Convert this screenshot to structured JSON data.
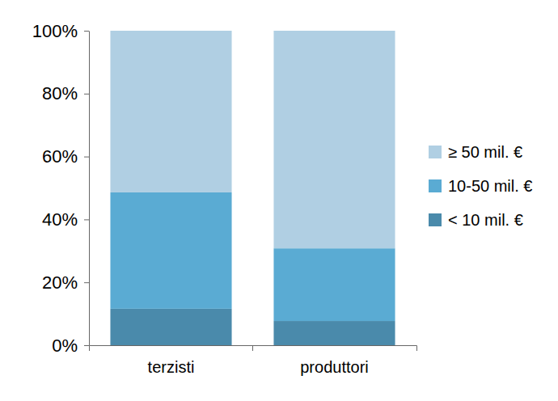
{
  "chart_data": {
    "type": "bar",
    "stacked": true,
    "legend": "right",
    "categories": [
      "terzisti",
      "produttori"
    ],
    "series": [
      {
        "name": "< 10 mil. €",
        "color": "#4a8aab",
        "values": [
          11.6,
          7.7
        ]
      },
      {
        "name": "10-50 mil. €",
        "color": "#5aabd3",
        "values": [
          37.0,
          23.1
        ]
      },
      {
        "name": "≥ 50 mil. €",
        "color": "#b0cfe3",
        "values": [
          51.4,
          69.2
        ]
      }
    ],
    "ylim": [
      0,
      100
    ],
    "yticks": [
      {
        "value": 0,
        "label": "0%"
      },
      {
        "value": 20,
        "label": "20%"
      },
      {
        "value": 40,
        "label": "40%"
      },
      {
        "value": 60,
        "label": "60%"
      },
      {
        "value": 80,
        "label": "80%"
      },
      {
        "value": 100,
        "label": "100%"
      }
    ]
  }
}
